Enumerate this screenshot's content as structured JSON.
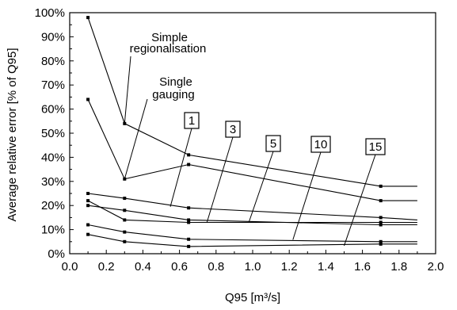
{
  "chart_data": {
    "type": "line",
    "title": "",
    "xlabel": "Q95 [m³/s]",
    "ylabel": "Average relative error [% of Q95]",
    "xlim": [
      0,
      2.0
    ],
    "ylim": [
      0,
      100
    ],
    "x_ticks": [
      "0.0",
      "0.2",
      "0.4",
      "0.6",
      "0.8",
      "1.0",
      "1.2",
      "1.4",
      "1.6",
      "1.8",
      "2.0"
    ],
    "y_ticks": [
      "0%",
      "10%",
      "20%",
      "30%",
      "40%",
      "50%",
      "60%",
      "70%",
      "80%",
      "90%",
      "100%"
    ],
    "grid": false,
    "legend": "none",
    "x": [
      0.1,
      0.3,
      0.65,
      1.7,
      1.9
    ],
    "series": [
      {
        "name": "Simple regionalisation",
        "values": [
          98,
          54,
          41,
          28,
          28
        ]
      },
      {
        "name": "Single gauging",
        "values": [
          64,
          31,
          37,
          22,
          22
        ]
      },
      {
        "name": "1",
        "values": [
          25,
          23,
          19,
          15,
          14
        ]
      },
      {
        "name": "3",
        "values": [
          22,
          14,
          13,
          13,
          13
        ]
      },
      {
        "name": "5",
        "values": [
          20,
          18,
          14,
          12,
          12
        ]
      },
      {
        "name": "10",
        "values": [
          12,
          9,
          6,
          5,
          5
        ]
      },
      {
        "name": "15",
        "values": [
          8,
          5,
          3,
          4,
          4
        ]
      }
    ],
    "annotations": [
      {
        "text_lines": [
          "Simple",
          "regionalisation"
        ],
        "series": 0,
        "target": [
          0.3,
          54
        ]
      },
      {
        "text_lines": [
          "Single",
          "gauging"
        ],
        "series": 1,
        "target": [
          0.3,
          31
        ]
      }
    ],
    "box_labels": [
      {
        "text": "1",
        "series": 2,
        "target": [
          0.55,
          19.5
        ]
      },
      {
        "text": "3",
        "series": 3,
        "target": [
          0.75,
          13
        ]
      },
      {
        "text": "5",
        "series": 4,
        "target": [
          0.98,
          13.2
        ]
      },
      {
        "text": "10",
        "series": 5,
        "target": [
          1.22,
          5.8
        ]
      },
      {
        "text": "15",
        "series": 6,
        "target": [
          1.5,
          3.3
        ]
      }
    ]
  }
}
